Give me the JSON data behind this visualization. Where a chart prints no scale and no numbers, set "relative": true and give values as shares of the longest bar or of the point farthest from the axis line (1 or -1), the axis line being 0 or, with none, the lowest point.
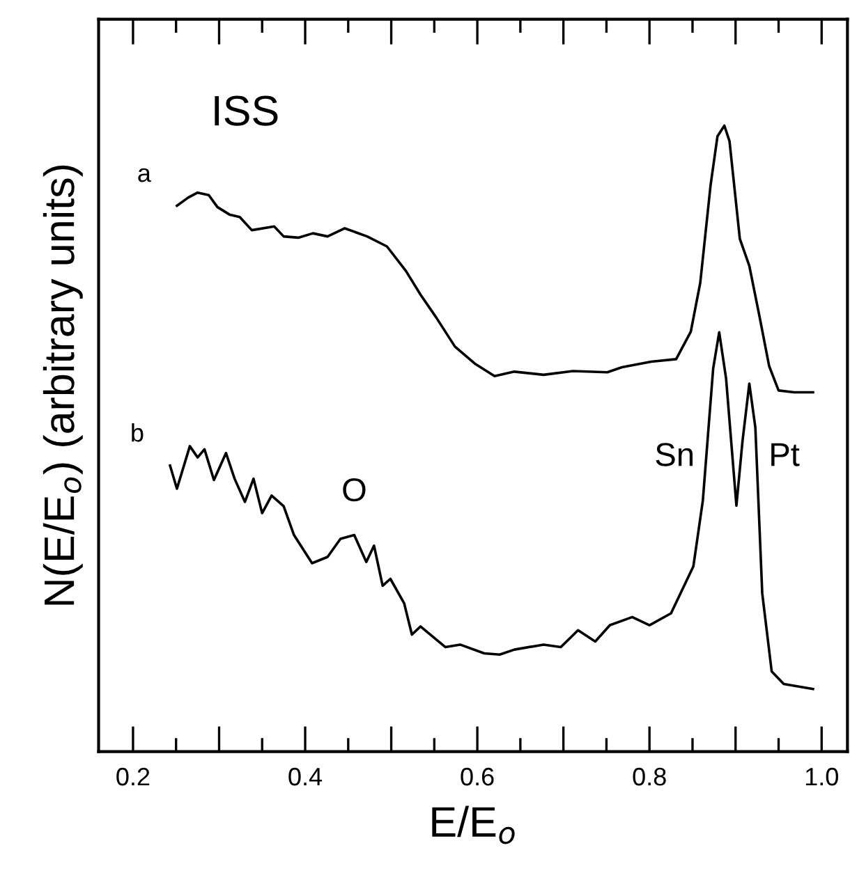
{
  "chart_data": {
    "type": "line",
    "relative": true,
    "xlabel": "E/E$_{o}$",
    "ylabel": "N(E/E$_{o}$) (arbitrary units)",
    "xlim": [
      0.16,
      1.03
    ],
    "xticks": [
      0.2,
      0.4,
      0.6,
      0.8,
      {
        "value": 1.0,
        "label": "1.0"
      }
    ],
    "tick_labels": "x",
    "grid": false,
    "legend": false,
    "marker": "none",
    "line_style": "solid",
    "annotations": [
      "ISS",
      {
        "text": "O",
        "x": 0.457,
        "y": 0.346
      },
      {
        "text": "Sn",
        "x": 0.866,
        "y": 0.47
      },
      {
        "text": "Pt",
        "x": 0.925,
        "y": 0.47
      }
    ],
    "series": [
      {
        "name": "a",
        "color": "#000000",
        "x": [
          0.251,
          0.264,
          0.275,
          0.288,
          0.298,
          0.312,
          0.324,
          0.338,
          0.364,
          0.375,
          0.392,
          0.409,
          0.426,
          0.446,
          0.472,
          0.495,
          0.517,
          0.534,
          0.552,
          0.574,
          0.597,
          0.62,
          0.643,
          0.677,
          0.711,
          0.751,
          0.768,
          0.802,
          0.831,
          0.848,
          0.859,
          0.871,
          0.879,
          0.887,
          0.893,
          0.905,
          0.916,
          0.928,
          0.939,
          0.95,
          0.968,
          0.99
        ],
        "values": [
          0.872,
          0.885,
          0.893,
          0.889,
          0.87,
          0.858,
          0.854,
          0.833,
          0.839,
          0.823,
          0.821,
          0.828,
          0.823,
          0.836,
          0.823,
          0.807,
          0.768,
          0.73,
          0.694,
          0.647,
          0.62,
          0.6,
          0.607,
          0.602,
          0.608,
          0.606,
          0.614,
          0.623,
          0.627,
          0.671,
          0.749,
          0.905,
          0.983,
          1.0,
          0.975,
          0.819,
          0.776,
          0.694,
          0.616,
          0.577,
          0.574,
          0.574
        ]
      },
      {
        "name": "b",
        "color": "#000000",
        "x": [
          0.243,
          0.251,
          0.266,
          0.275,
          0.283,
          0.294,
          0.308,
          0.318,
          0.33,
          0.34,
          0.35,
          0.361,
          0.375,
          0.387,
          0.408,
          0.426,
          0.441,
          0.457,
          0.471,
          0.48,
          0.49,
          0.499,
          0.515,
          0.524,
          0.534,
          0.563,
          0.58,
          0.608,
          0.626,
          0.643,
          0.677,
          0.697,
          0.717,
          0.737,
          0.754,
          0.78,
          0.8,
          0.825,
          0.851,
          0.862,
          0.874,
          0.881,
          0.889,
          0.901,
          0.908,
          0.916,
          0.923,
          0.931,
          0.942,
          0.956,
          0.99
        ],
        "values": [
          0.457,
          0.42,
          0.488,
          0.47,
          0.483,
          0.434,
          0.477,
          0.436,
          0.399,
          0.436,
          0.381,
          0.409,
          0.392,
          0.346,
          0.301,
          0.311,
          0.34,
          0.346,
          0.303,
          0.329,
          0.265,
          0.276,
          0.237,
          0.187,
          0.2,
          0.167,
          0.171,
          0.157,
          0.155,
          0.163,
          0.171,
          0.167,
          0.194,
          0.176,
          0.202,
          0.215,
          0.202,
          0.221,
          0.296,
          0.401,
          0.612,
          0.67,
          0.596,
          0.393,
          0.495,
          0.588,
          0.518,
          0.253,
          0.128,
          0.108,
          0.1
        ]
      }
    ]
  }
}
